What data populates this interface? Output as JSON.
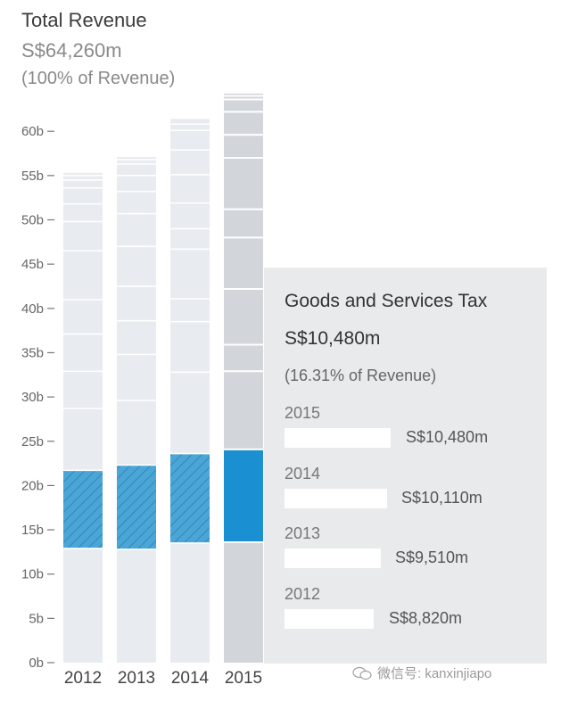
{
  "header": {
    "title": "Total Revenue",
    "amount": "S$64,260m",
    "percent": "(100% of Revenue)"
  },
  "chart_data": {
    "type": "bar",
    "stacked": true,
    "title": "Total Revenue",
    "categories": [
      "2012",
      "2013",
      "2014",
      "2015"
    ],
    "y_ticks": [
      "0b",
      "5b",
      "10b",
      "15b",
      "20b",
      "25b",
      "30b",
      "35b",
      "40b",
      "45b",
      "50b",
      "55b",
      "60b"
    ],
    "ylim": [
      0,
      64
    ],
    "totals": [
      55.3,
      57.1,
      61.4,
      64.26
    ],
    "highlight": {
      "name": "Goods and Services Tax",
      "base": [
        12.9,
        12.8,
        13.5,
        13.6
      ],
      "values": [
        8.82,
        9.51,
        10.11,
        10.48
      ]
    },
    "segment_boundaries": [
      [
        12.9,
        21.72,
        28.7,
        32.9,
        37.1,
        41.0,
        46.5,
        49.8,
        51.8,
        53.6,
        54.5,
        55.0
      ],
      [
        12.8,
        22.31,
        29.6,
        34.8,
        38.6,
        42.5,
        47.0,
        50.7,
        53.2,
        55.0,
        56.3,
        56.8
      ],
      [
        13.5,
        23.61,
        32.8,
        38.5,
        41.1,
        46.7,
        49.0,
        51.9,
        55.1,
        57.9,
        60.1,
        60.8
      ],
      [
        13.6,
        24.08,
        32.9,
        35.9,
        42.2,
        48.0,
        51.2,
        57.0,
        59.6,
        62.2,
        63.6,
        64.0
      ]
    ],
    "colors": {
      "hatched": "#4aa6d6",
      "selected": "#1a8fd1",
      "bar_light": "#e8ebf0",
      "bar_selected": "#d2d6db",
      "separator": "#ffffff"
    }
  },
  "tooltip": {
    "title": "Goods and Services Tax",
    "value": "S$10,480m",
    "percent": "(16.31% of Revenue)",
    "rows": [
      {
        "year": "2015",
        "value": "S$10,480m",
        "amount": 10480
      },
      {
        "year": "2014",
        "value": "S$10,110m",
        "amount": 10110
      },
      {
        "year": "2013",
        "value": "S$9,510m",
        "amount": 9510
      },
      {
        "year": "2012",
        "value": "S$8,820m",
        "amount": 8820
      }
    ]
  },
  "watermark": {
    "text": "微信号: kanxinjiapo"
  }
}
